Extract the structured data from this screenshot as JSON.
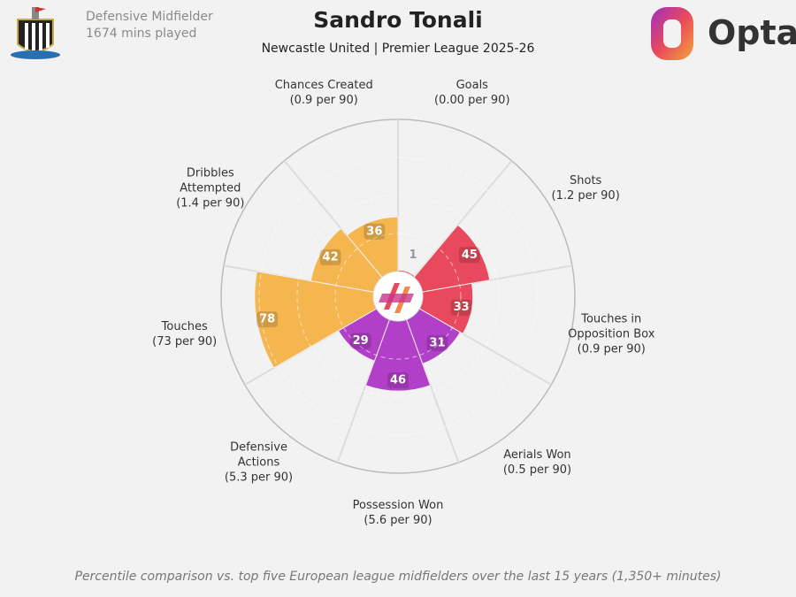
{
  "header": {
    "position": "Defensive Midfielder",
    "minutes": "1674 mins played",
    "brand": "Opta"
  },
  "chart_data": {
    "type": "pizza",
    "title": "Sandro Tonali",
    "subtitle": "Newcastle United | Premier League 2025-26",
    "categories": [
      "Goals",
      "Shots",
      "Touches in Opposition Box",
      "Aerials Won",
      "Possession Won",
      "Defensive Actions",
      "Touches",
      "Dribbles Attempted",
      "Chances Created"
    ],
    "per90_labels": [
      "(0.00 per 90)",
      "(1.2 per 90)",
      "(0.9 per 90)",
      "(0.5 per 90)",
      "(5.6 per 90)",
      "(5.3 per 90)",
      "(73 per 90)",
      "(1.4 per 90)",
      "(0.9 per 90)"
    ],
    "values": [
      1,
      45,
      33,
      31,
      46,
      29,
      78,
      42,
      36
    ],
    "colors": [
      "#e8495c",
      "#e8495c",
      "#e8495c",
      "#b23fc8",
      "#b23fc8",
      "#b23fc8",
      "#f5b64f",
      "#f5b64f",
      "#f5b64f"
    ],
    "rlim": [
      0,
      100
    ],
    "rticks": [
      25,
      50,
      75
    ],
    "footnote": "Percentile comparison vs. top five European league midfielders over the last 15 years (1,350+ minutes)"
  }
}
